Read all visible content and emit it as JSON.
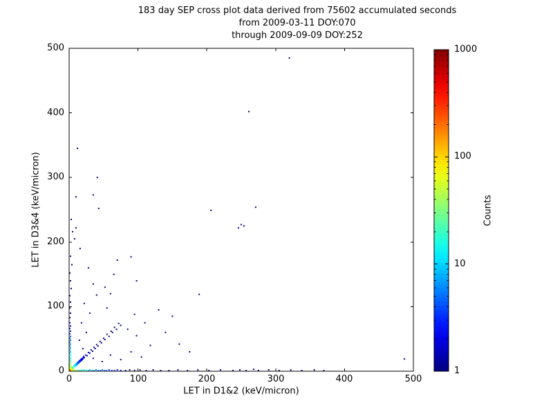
{
  "figure": {
    "title_line1": "183 day SEP cross plot data derived from 75602 accumulated seconds",
    "title_line2": "from 2009-03-11 DOY:070",
    "title_line3": "through 2009-09-09 DOY:252"
  },
  "plot": {
    "xlabel": "LET in D1&2 (keV/micron)",
    "ylabel": "LET in D3&4 (keV/micron)",
    "xticks": [
      "0",
      "100",
      "200",
      "300",
      "400",
      "500"
    ],
    "yticks": [
      "0",
      "100",
      "200",
      "300",
      "400",
      "500"
    ]
  },
  "colorbar": {
    "label": "Counts",
    "ticks": [
      "1000",
      "100",
      "10",
      "1"
    ],
    "min_color": "#00007f",
    "max_color": "#7f0000"
  },
  "chart_data": {
    "type": "scatter",
    "title": "183 day SEP cross plot data derived from 75602 accumulated seconds from 2009-03-11 DOY:070 through 2009-09-09 DOY:252",
    "xlabel": "LET in D1&2 (keV/micron)",
    "ylabel": "LET in D3&4 (keV/micron)",
    "xlim": [
      0,
      500
    ],
    "ylim": [
      0,
      500
    ],
    "grid": false,
    "background": "#ffffff",
    "color_scale": {
      "scale": "log",
      "min": 1,
      "max": 1000,
      "colormap": "jet",
      "label": "Counts",
      "position": "right"
    },
    "points_format": "[x_LET_D12, y_LET_D34, counts]",
    "points": [
      [
        1,
        1,
        300
      ],
      [
        2,
        1,
        250
      ],
      [
        1,
        2,
        230
      ],
      [
        2,
        2,
        200
      ],
      [
        3,
        1,
        170
      ],
      [
        1,
        3,
        170
      ],
      [
        3,
        2,
        140
      ],
      [
        2,
        3,
        140
      ],
      [
        4,
        1,
        120
      ],
      [
        1,
        4,
        120
      ],
      [
        3,
        3,
        110
      ],
      [
        4,
        2,
        95
      ],
      [
        2,
        4,
        95
      ],
      [
        5,
        1,
        85
      ],
      [
        1,
        5,
        85
      ],
      [
        4,
        3,
        80
      ],
      [
        3,
        4,
        80
      ],
      [
        5,
        2,
        70
      ],
      [
        2,
        5,
        70
      ],
      [
        6,
        1,
        60
      ],
      [
        1,
        6,
        60
      ],
      [
        4,
        4,
        65
      ],
      [
        5,
        3,
        55
      ],
      [
        3,
        5,
        55
      ],
      [
        6,
        2,
        48
      ],
      [
        2,
        6,
        48
      ],
      [
        5,
        4,
        45
      ],
      [
        4,
        5,
        45
      ],
      [
        6,
        3,
        40
      ],
      [
        3,
        6,
        40
      ],
      [
        5,
        5,
        38
      ],
      [
        6,
        4,
        32
      ],
      [
        4,
        6,
        32
      ],
      [
        6,
        5,
        26
      ],
      [
        5,
        6,
        26
      ],
      [
        6,
        6,
        22
      ],
      [
        7,
        7,
        20
      ],
      [
        8,
        7,
        17
      ],
      [
        7,
        8,
        17
      ],
      [
        8,
        8,
        15
      ],
      [
        9,
        8,
        13
      ],
      [
        8,
        9,
        13
      ],
      [
        9,
        9,
        12
      ],
      [
        10,
        9,
        10
      ],
      [
        9,
        10,
        10
      ],
      [
        10,
        10,
        9
      ],
      [
        11,
        10,
        8
      ],
      [
        10,
        11,
        8
      ],
      [
        11,
        11,
        7
      ],
      [
        12,
        11,
        6
      ],
      [
        11,
        12,
        6
      ],
      [
        12,
        12,
        6
      ],
      [
        13,
        12,
        5
      ],
      [
        12,
        13,
        5
      ],
      [
        13,
        13,
        5
      ],
      [
        14,
        13,
        4
      ],
      [
        13,
        14,
        4
      ],
      [
        15,
        14,
        4
      ],
      [
        14,
        15,
        4
      ],
      [
        16,
        15,
        3
      ],
      [
        15,
        16,
        3
      ],
      [
        17,
        16,
        3
      ],
      [
        16,
        17,
        3
      ],
      [
        18,
        17,
        2
      ],
      [
        17,
        18,
        2
      ],
      [
        19,
        18,
        2
      ],
      [
        18,
        19,
        2
      ],
      [
        20,
        19,
        2
      ],
      [
        19,
        20,
        2
      ],
      [
        21,
        21,
        2
      ],
      [
        22,
        21,
        1
      ],
      [
        21,
        23,
        2
      ],
      [
        24,
        25,
        2
      ],
      [
        26,
        24,
        1
      ],
      [
        28,
        29,
        1
      ],
      [
        30,
        28,
        2
      ],
      [
        32,
        33,
        1
      ],
      [
        34,
        31,
        1
      ],
      [
        36,
        37,
        1
      ],
      [
        38,
        35,
        1
      ],
      [
        40,
        41,
        1
      ],
      [
        42,
        39,
        1
      ],
      [
        45,
        46,
        1
      ],
      [
        47,
        44,
        1
      ],
      [
        50,
        51,
        1
      ],
      [
        52,
        49,
        1
      ],
      [
        55,
        57,
        1
      ],
      [
        58,
        54,
        1
      ],
      [
        61,
        62,
        1
      ],
      [
        63,
        60,
        1
      ],
      [
        66,
        68,
        1
      ],
      [
        69,
        65,
        1
      ],
      [
        72,
        74,
        1
      ],
      [
        75,
        71,
        1
      ],
      [
        7,
        1,
        55
      ],
      [
        8,
        1,
        48
      ],
      [
        9,
        1,
        42
      ],
      [
        10,
        1,
        38
      ],
      [
        12,
        1,
        32
      ],
      [
        14,
        1,
        27
      ],
      [
        16,
        1,
        23
      ],
      [
        18,
        2,
        20
      ],
      [
        20,
        1,
        17
      ],
      [
        22,
        2,
        15
      ],
      [
        25,
        1,
        13
      ],
      [
        28,
        1,
        11
      ],
      [
        30,
        2,
        9
      ],
      [
        33,
        1,
        8
      ],
      [
        36,
        1,
        7
      ],
      [
        39,
        2,
        6
      ],
      [
        42,
        1,
        6
      ],
      [
        45,
        1,
        5
      ],
      [
        48,
        2,
        5
      ],
      [
        51,
        1,
        4
      ],
      [
        54,
        1,
        4
      ],
      [
        58,
        2,
        3
      ],
      [
        62,
        1,
        3
      ],
      [
        66,
        1,
        3
      ],
      [
        70,
        2,
        2
      ],
      [
        75,
        1,
        2
      ],
      [
        82,
        1,
        1
      ],
      [
        88,
        2,
        1
      ],
      [
        95,
        1,
        1
      ],
      [
        103,
        2,
        1
      ],
      [
        112,
        1,
        1
      ],
      [
        122,
        2,
        1
      ],
      [
        133,
        1,
        1
      ],
      [
        145,
        1,
        1
      ],
      [
        158,
        2,
        1
      ],
      [
        172,
        1,
        1
      ],
      [
        187,
        2,
        1
      ],
      [
        203,
        1,
        1
      ],
      [
        220,
        2,
        1
      ],
      [
        238,
        1,
        1
      ],
      [
        248,
        2,
        1
      ],
      [
        257,
        1,
        1
      ],
      [
        268,
        3,
        1
      ],
      [
        275,
        1,
        1
      ],
      [
        290,
        2,
        1
      ],
      [
        305,
        1,
        1
      ],
      [
        322,
        2,
        1
      ],
      [
        338,
        1,
        1
      ],
      [
        356,
        2,
        1
      ],
      [
        370,
        1,
        1
      ],
      [
        487,
        19,
        1
      ],
      [
        1,
        7,
        55
      ],
      [
        1,
        8,
        48
      ],
      [
        2,
        9,
        42
      ],
      [
        1,
        10,
        38
      ],
      [
        2,
        12,
        32
      ],
      [
        1,
        14,
        27
      ],
      [
        2,
        16,
        23
      ],
      [
        1,
        18,
        20
      ],
      [
        2,
        20,
        17
      ],
      [
        1,
        22,
        15
      ],
      [
        2,
        25,
        13
      ],
      [
        1,
        28,
        11
      ],
      [
        2,
        30,
        9
      ],
      [
        1,
        33,
        8
      ],
      [
        2,
        36,
        7
      ],
      [
        1,
        39,
        6
      ],
      [
        2,
        42,
        6
      ],
      [
        1,
        45,
        5
      ],
      [
        2,
        48,
        5
      ],
      [
        1,
        51,
        4
      ],
      [
        2,
        54,
        4
      ],
      [
        1,
        58,
        3
      ],
      [
        2,
        62,
        3
      ],
      [
        1,
        66,
        3
      ],
      [
        2,
        70,
        2
      ],
      [
        1,
        75,
        2
      ],
      [
        1,
        83,
        1
      ],
      [
        2,
        90,
        1
      ],
      [
        1,
        98,
        1
      ],
      [
        2,
        107,
        1
      ],
      [
        1,
        117,
        1
      ],
      [
        3,
        128,
        1
      ],
      [
        2,
        140,
        1
      ],
      [
        1,
        152,
        1
      ],
      [
        4,
        165,
        1
      ],
      [
        2,
        178,
        1
      ],
      [
        5,
        216,
        1
      ],
      [
        10,
        222,
        1
      ],
      [
        3,
        235,
        1
      ],
      [
        10,
        270,
        1
      ],
      [
        12,
        345,
        1
      ],
      [
        20,
        35,
        1
      ],
      [
        35,
        20,
        1
      ],
      [
        15,
        48,
        1
      ],
      [
        48,
        15,
        1
      ],
      [
        25,
        60,
        1
      ],
      [
        60,
        25,
        1
      ],
      [
        18,
        75,
        1
      ],
      [
        75,
        18,
        1
      ],
      [
        30,
        90,
        1
      ],
      [
        90,
        30,
        1
      ],
      [
        22,
        105,
        1
      ],
      [
        105,
        22,
        1
      ],
      [
        40,
        118,
        1
      ],
      [
        118,
        40,
        1
      ],
      [
        55,
        98,
        1
      ],
      [
        98,
        55,
        1
      ],
      [
        35,
        135,
        1
      ],
      [
        60,
        120,
        1
      ],
      [
        41,
        300,
        1
      ],
      [
        35,
        273,
        1
      ],
      [
        43,
        252,
        1
      ],
      [
        90,
        177,
        1
      ],
      [
        70,
        172,
        1
      ],
      [
        98,
        140,
        1
      ],
      [
        189,
        119,
        1
      ],
      [
        206,
        249,
        1
      ],
      [
        271,
        254,
        1
      ],
      [
        246,
        222,
        2
      ],
      [
        250,
        227,
        1
      ],
      [
        254,
        225,
        1
      ],
      [
        261,
        402,
        1
      ],
      [
        320,
        485,
        1
      ],
      [
        140,
        60,
        1
      ],
      [
        160,
        42,
        1
      ],
      [
        175,
        30,
        1
      ],
      [
        150,
        85,
        1
      ],
      [
        130,
        95,
        1
      ],
      [
        110,
        75,
        1
      ],
      [
        85,
        65,
        1
      ],
      [
        95,
        88,
        1
      ],
      [
        65,
        150,
        1
      ],
      [
        52,
        130,
        1
      ],
      [
        28,
        160,
        1
      ],
      [
        16,
        190,
        1
      ],
      [
        8,
        205,
        1
      ]
    ]
  }
}
